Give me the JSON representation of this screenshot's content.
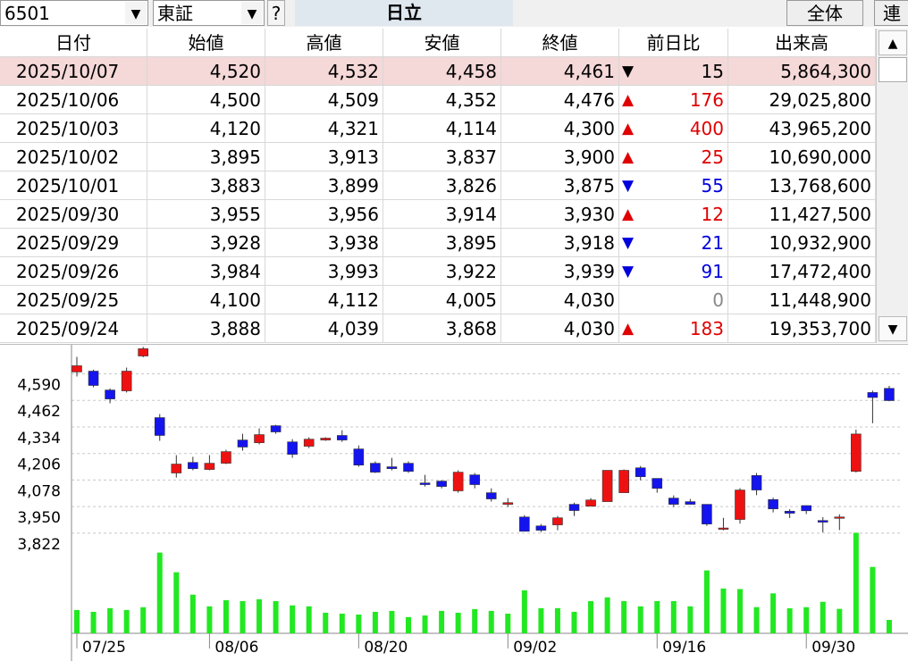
{
  "toolbar": {
    "code": "6501",
    "market": "東証",
    "help": "?",
    "name": "日立",
    "all_button": "全体",
    "link_button": "連"
  },
  "table": {
    "headers": [
      "日付",
      "始値",
      "高値",
      "安値",
      "終値",
      "前日比",
      "出来高"
    ],
    "selected_row": 0,
    "rows": [
      {
        "date": "2025/10/07",
        "open": "4,520",
        "high": "4,532",
        "low": "4,458",
        "close": "4,461",
        "trend": "▼",
        "change": "15",
        "volume": "5,864,300"
      },
      {
        "date": "2025/10/06",
        "open": "4,500",
        "high": "4,509",
        "low": "4,352",
        "close": "4,476",
        "trend": "▲",
        "change": "176",
        "volume": "29,025,800"
      },
      {
        "date": "2025/10/03",
        "open": "4,120",
        "high": "4,321",
        "low": "4,114",
        "close": "4,300",
        "trend": "▲",
        "change": "400",
        "volume": "43,965,200"
      },
      {
        "date": "2025/10/02",
        "open": "3,895",
        "high": "3,913",
        "low": "3,837",
        "close": "3,900",
        "trend": "▲",
        "change": "25",
        "volume": "10,690,000"
      },
      {
        "date": "2025/10/01",
        "open": "3,883",
        "high": "3,899",
        "low": "3,826",
        "close": "3,875",
        "trend": "▼",
        "change": "55",
        "volume": "13,768,600"
      },
      {
        "date": "2025/09/30",
        "open": "3,955",
        "high": "3,956",
        "low": "3,914",
        "close": "3,930",
        "trend": "▲",
        "change": "12",
        "volume": "11,427,500"
      },
      {
        "date": "2025/09/29",
        "open": "3,928",
        "high": "3,938",
        "low": "3,895",
        "close": "3,918",
        "trend": "▼",
        "change": "21",
        "volume": "10,932,900"
      },
      {
        "date": "2025/09/26",
        "open": "3,984",
        "high": "3,993",
        "low": "3,922",
        "close": "3,939",
        "trend": "▼",
        "change": "91",
        "volume": "17,472,400"
      },
      {
        "date": "2025/09/25",
        "open": "4,100",
        "high": "4,112",
        "low": "4,005",
        "close": "4,030",
        "change": "0",
        "volume": "11,448,900"
      },
      {
        "date": "2025/09/24",
        "open": "3,888",
        "high": "4,039",
        "low": "3,868",
        "close": "4,030",
        "trend": "▲",
        "change": "183",
        "volume": "19,353,700"
      }
    ]
  },
  "chart_data": {
    "type": "candlestick",
    "categories": [
      "07/25",
      null,
      null,
      null,
      null,
      null,
      null,
      null,
      "08/06",
      null,
      null,
      null,
      null,
      null,
      null,
      null,
      null,
      "08/20",
      null,
      null,
      null,
      null,
      null,
      null,
      null,
      null,
      "09/02",
      null,
      null,
      null,
      null,
      null,
      null,
      null,
      null,
      "09/16",
      null,
      null,
      null,
      null,
      null,
      null,
      null,
      null,
      "09/30",
      null,
      null,
      null,
      null,
      null
    ],
    "open": [
      4599,
      4603,
      4512,
      4508,
      4676,
      4379,
      4112,
      4163,
      4129,
      4159,
      4271,
      4258,
      4340,
      4262,
      4241,
      4271,
      4293,
      4228,
      4159,
      4142,
      4159,
      4064,
      4073,
      4026,
      4103,
      4017,
      3961,
      3900,
      3857,
      3862,
      3961,
      3952,
      3974,
      4017,
      4137,
      4086,
      3991,
      3974,
      3961,
      3844,
      3888,
      4100,
      3984,
      3928,
      3955,
      3883,
      3895,
      4120,
      4500,
      4520
    ],
    "high": [
      4672,
      4610,
      4520,
      4620,
      4720,
      4396,
      4198,
      4190,
      4198,
      4224,
      4301,
      4327,
      4344,
      4275,
      4284,
      4284,
      4318,
      4245,
      4168,
      4185,
      4168,
      4103,
      4077,
      4125,
      4112,
      4038,
      3991,
      3909,
      3866,
      3905,
      3969,
      3991,
      4125,
      4129,
      4146,
      4086,
      4004,
      3987,
      3961,
      3896,
      4039,
      4112,
      3993,
      3938,
      3956,
      3899,
      3913,
      4321,
      4509,
      4532
    ],
    "low": [
      4577,
      4525,
      4448,
      4500,
      4670,
      4267,
      4090,
      4125,
      4125,
      4155,
      4220,
      4250,
      4301,
      4185,
      4232,
      4267,
      4262,
      4142,
      4112,
      4125,
      4112,
      4047,
      4038,
      4017,
      4038,
      3974,
      3948,
      3831,
      3827,
      3836,
      3905,
      3952,
      3974,
      4017,
      4077,
      4017,
      3948,
      3961,
      3857,
      3836,
      3868,
      4005,
      3922,
      3895,
      3914,
      3826,
      3837,
      4114,
      4352,
      4458
    ],
    "close": [
      4629,
      4534,
      4469,
      4603,
      4711,
      4293,
      4155,
      4133,
      4159,
      4215,
      4237,
      4297,
      4310,
      4202,
      4275,
      4280,
      4271,
      4150,
      4116,
      4133,
      4120,
      4056,
      4047,
      4116,
      4056,
      3987,
      3969,
      3831,
      3836,
      3896,
      3931,
      3982,
      4125,
      4125,
      4094,
      4038,
      3961,
      3961,
      3866,
      3847,
      4030,
      4030,
      3939,
      3918,
      3930,
      3875,
      3900,
      4300,
      4476,
      4461
    ],
    "volume": [
      10200000,
      9400000,
      11000000,
      10200000,
      11400000,
      35300000,
      26700000,
      16900000,
      11800000,
      14500000,
      14100000,
      14900000,
      14100000,
      12200000,
      11800000,
      9000000,
      8600000,
      8200000,
      9400000,
      9800000,
      7100000,
      7800000,
      9800000,
      9000000,
      10600000,
      9800000,
      8600000,
      18800000,
      11000000,
      11000000,
      9400000,
      14100000,
      15700000,
      14100000,
      11800000,
      14100000,
      14100000,
      11800000,
      27500000,
      19600000,
      19353700,
      11448900,
      17472400,
      10932900,
      11427500,
      13768600,
      10690000,
      43965200,
      29025800,
      5864300
    ],
    "ylim": [
      3800,
      4730
    ],
    "yticks": [
      {
        "value": 4590,
        "label": "4,590"
      },
      {
        "value": 4462,
        "label": "4,462"
      },
      {
        "value": 4334,
        "label": "4,334"
      },
      {
        "value": 4206,
        "label": "4,206"
      },
      {
        "value": 4078,
        "label": "4,078"
      },
      {
        "value": 3950,
        "label": "3,950"
      },
      {
        "value": 3822,
        "label": "3,822"
      }
    ],
    "y2lim": [
      0,
      50000000
    ],
    "grid": true,
    "up_color": "#ee1111",
    "down_color": "#1414ee",
    "volume_color": "#22e822"
  }
}
